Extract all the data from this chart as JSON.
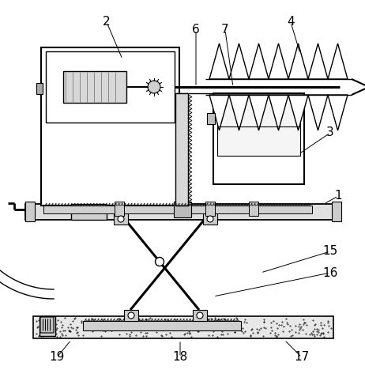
{
  "background_color": "#ffffff",
  "line_color": "#000000",
  "labels_info": [
    [
      "2",
      135,
      28,
      155,
      75
    ],
    [
      "6",
      248,
      38,
      248,
      110
    ],
    [
      "7",
      285,
      38,
      295,
      110
    ],
    [
      "4",
      368,
      28,
      380,
      68
    ],
    [
      "3",
      418,
      168,
      378,
      195
    ],
    [
      "1",
      428,
      248,
      410,
      258
    ],
    [
      "15",
      418,
      318,
      330,
      345
    ],
    [
      "16",
      418,
      345,
      270,
      375
    ],
    [
      "17",
      382,
      452,
      360,
      430
    ],
    [
      "18",
      228,
      452,
      228,
      430
    ],
    [
      "19",
      72,
      452,
      90,
      430
    ]
  ],
  "label_fontsize": 11
}
